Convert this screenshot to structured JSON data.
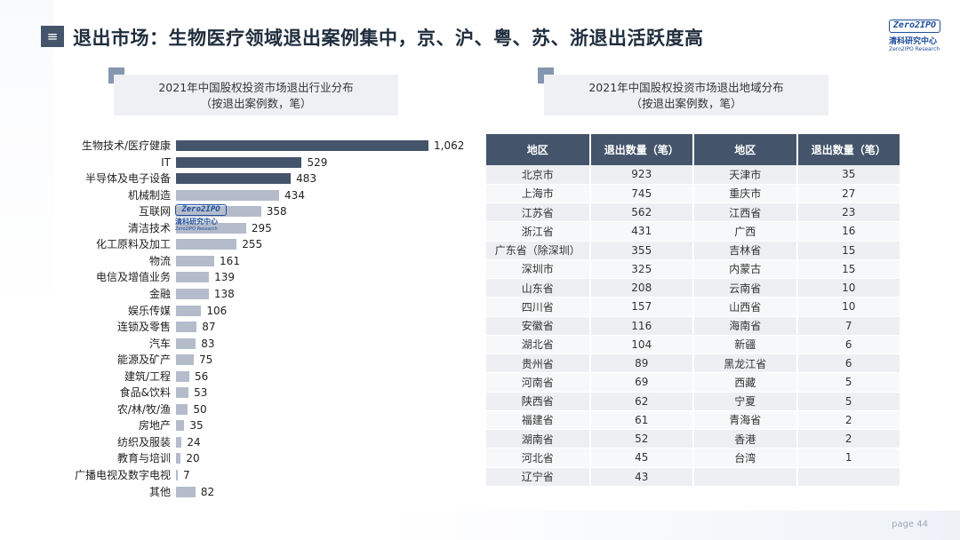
{
  "header": {
    "title": "退出市场：生物医疗领域退出案例集中，京、沪、粤、苏、浙退出活跃度高",
    "menu_icon": "≡",
    "logo": {
      "mark": "Zero2IPO",
      "cn": "清科研究中心",
      "en": "Zero2IPO Research"
    }
  },
  "footer": {
    "page_label": "page  44"
  },
  "left_chart": {
    "heading_line1": "2021年中国股权投资市场退出行业分布",
    "heading_line2": "（按退出案例数，笔）"
  },
  "right_chart": {
    "heading_line1": "2021年中国股权投资市场退出地域分布",
    "heading_line2": "（按退出案例数，笔）"
  },
  "colors": {
    "dark_bar": "#44546a",
    "light_bar": "#b4bccb",
    "header": "#44546a"
  },
  "chart_data": [
    {
      "type": "bar",
      "orientation": "horizontal",
      "title": "2021年中国股权投资市场退出行业分布（按退出案例数，笔）",
      "categories": [
        "生物技术/医疗健康",
        "IT",
        "半导体及电子设备",
        "机械制造",
        "互联网",
        "清洁技术",
        "化工原料及加工",
        "物流",
        "电信及增值业务",
        "金融",
        "娱乐传媒",
        "连锁及零售",
        "汽车",
        "能源及矿产",
        "建筑/工程",
        "食品&饮料",
        "农/林/牧/渔",
        "房地产",
        "纺织及服装",
        "教育与培训",
        "广播电视及数字电视",
        "其他"
      ],
      "values": [
        1062,
        529,
        483,
        434,
        358,
        295,
        255,
        161,
        139,
        138,
        106,
        87,
        83,
        75,
        56,
        53,
        50,
        35,
        24,
        20,
        7,
        82
      ],
      "value_labels": [
        "1,062",
        "529",
        "483",
        "434",
        "358",
        "295",
        "255",
        "161",
        "139",
        "138",
        "106",
        "87",
        "83",
        "75",
        "56",
        "53",
        "50",
        "35",
        "24",
        "20",
        "7",
        "82"
      ],
      "dark_count": 3,
      "xlim": [
        0,
        1062
      ]
    },
    {
      "type": "table",
      "title": "2021年中国股权投资市场退出地域分布（按退出案例数，笔）",
      "headers": [
        "地区",
        "退出数量（笔）",
        "地区",
        "退出数量（笔）"
      ],
      "rows": [
        [
          "北京市",
          "923",
          "天津市",
          "35"
        ],
        [
          "上海市",
          "745",
          "重庆市",
          "27"
        ],
        [
          "江苏省",
          "562",
          "江西省",
          "23"
        ],
        [
          "浙江省",
          "431",
          "广西",
          "16"
        ],
        [
          "广东省（除深圳）",
          "355",
          "吉林省",
          "15"
        ],
        [
          "深圳市",
          "325",
          "内蒙古",
          "15"
        ],
        [
          "山东省",
          "208",
          "云南省",
          "10"
        ],
        [
          "四川省",
          "157",
          "山西省",
          "10"
        ],
        [
          "安徽省",
          "116",
          "海南省",
          "7"
        ],
        [
          "湖北省",
          "104",
          "新疆",
          "6"
        ],
        [
          "贵州省",
          "89",
          "黑龙江省",
          "6"
        ],
        [
          "河南省",
          "69",
          "西藏",
          "5"
        ],
        [
          "陕西省",
          "62",
          "宁夏",
          "5"
        ],
        [
          "福建省",
          "61",
          "青海省",
          "2"
        ],
        [
          "湖南省",
          "52",
          "香港",
          "2"
        ],
        [
          "河北省",
          "45",
          "台湾",
          "1"
        ],
        [
          "辽宁省",
          "43",
          "",
          ""
        ]
      ]
    }
  ]
}
